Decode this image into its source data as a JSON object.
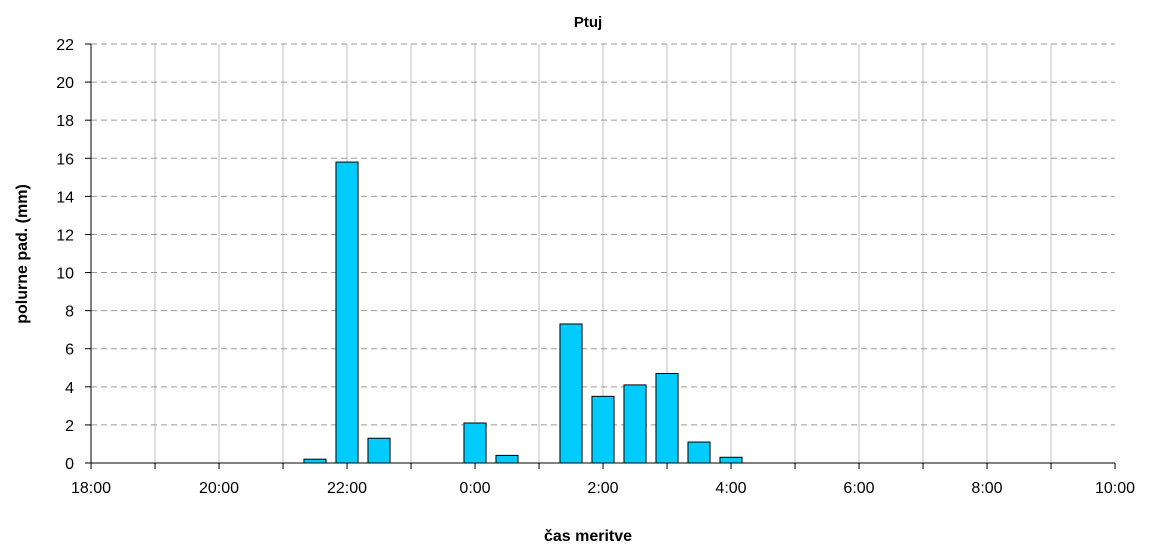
{
  "chart_data": {
    "type": "bar",
    "title": "Ptuj",
    "xlabel": "čas meritve",
    "ylabel": "polurne pad. (mm)",
    "ylim": [
      0,
      22
    ],
    "yticks": [
      "0",
      "2",
      "4",
      "6",
      "8",
      "10",
      "12",
      "14",
      "16",
      "18",
      "20",
      "22"
    ],
    "xlim_hours": [
      18,
      34
    ],
    "xticks": [
      "18:00",
      "20:00",
      "22:00",
      "0:00",
      "2:00",
      "4:00",
      "6:00",
      "8:00",
      "10:00"
    ],
    "bar_color": "#00ccff",
    "grid": true,
    "legend": "none",
    "x": [
      "21:30",
      "22:00",
      "22:30",
      "0:00",
      "0:30",
      "1:30",
      "2:00",
      "2:30",
      "3:00",
      "3:30",
      "4:00"
    ],
    "values": [
      0.2,
      15.8,
      1.3,
      2.1,
      0.4,
      7.3,
      3.5,
      4.1,
      4.7,
      1.1,
      0.3
    ]
  }
}
